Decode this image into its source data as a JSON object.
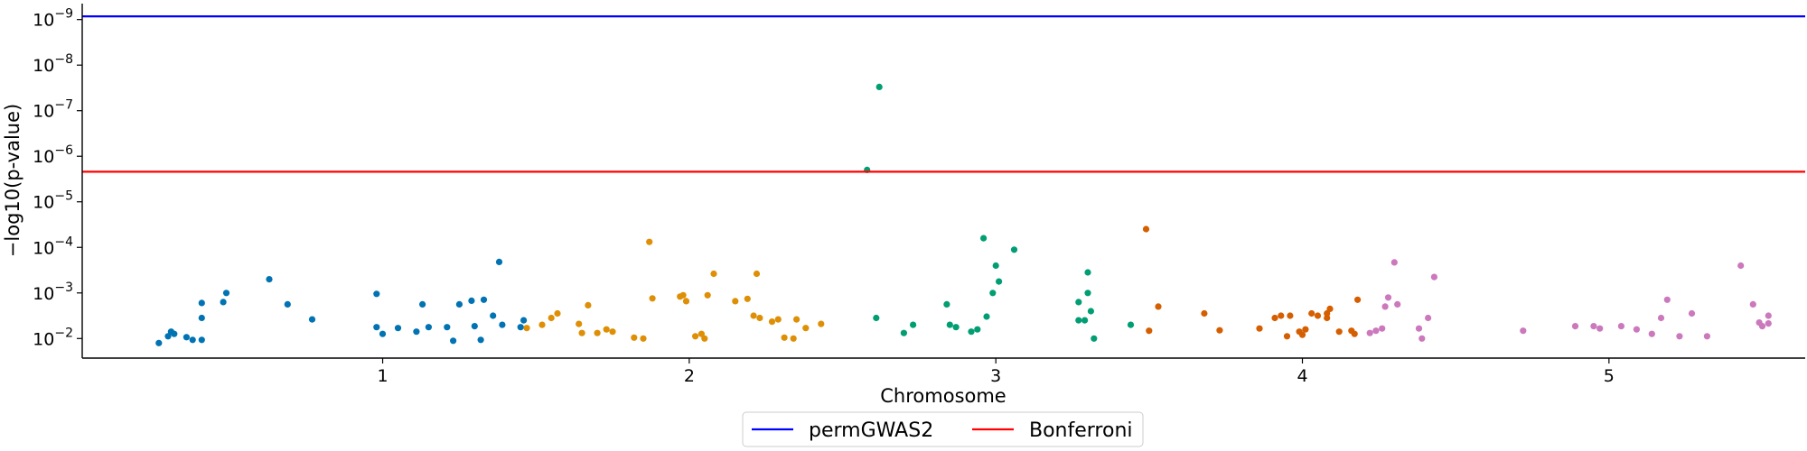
{
  "chart_data": {
    "type": "scatter",
    "title": "",
    "xlabel": "Chromosome",
    "ylabel": "−log10(p-value)",
    "x_ticks": [
      {
        "label": "1",
        "value": 1
      },
      {
        "label": "2",
        "value": 2
      },
      {
        "label": "3",
        "value": 3
      },
      {
        "label": "4",
        "value": 4
      },
      {
        "label": "5",
        "value": 5
      }
    ],
    "y_ticks": [
      {
        "mant": "10",
        "exp": "−9",
        "value": 9
      },
      {
        "mant": "10",
        "exp": "−8",
        "value": 8
      },
      {
        "mant": "10",
        "exp": "−7",
        "value": 7
      },
      {
        "mant": "10",
        "exp": "−6",
        "value": 6
      },
      {
        "mant": "10",
        "exp": "−5",
        "value": 5
      },
      {
        "mant": "10",
        "exp": "−4",
        "value": 4
      },
      {
        "mant": "10",
        "exp": "−3",
        "value": 3
      },
      {
        "mant": "10",
        "exp": "−2",
        "value": 2
      }
    ],
    "ylim": [
      1.57,
      9.35
    ],
    "xlim": [
      0.02,
      5.64
    ],
    "grid": false,
    "legend_position": "bottom-center",
    "thresholds": [
      {
        "name": "permGWAS2",
        "value": 9.07,
        "color": "#0000ff"
      },
      {
        "name": "Bonferroni",
        "value": 5.66,
        "color": "#ff0000"
      }
    ],
    "series": [
      {
        "color": "#0173b2",
        "points": [
          [
            0.27,
            1.9
          ],
          [
            0.3,
            2.05
          ],
          [
            0.31,
            2.15
          ],
          [
            0.32,
            2.1
          ],
          [
            0.36,
            2.03
          ],
          [
            0.38,
            1.97
          ],
          [
            0.41,
            1.97
          ],
          [
            0.41,
            2.45
          ],
          [
            0.41,
            2.78
          ],
          [
            0.48,
            2.8
          ],
          [
            0.49,
            3.0
          ],
          [
            0.63,
            3.3
          ],
          [
            0.69,
            2.75
          ],
          [
            0.77,
            2.42
          ],
          [
            0.98,
            2.25
          ],
          [
            0.98,
            2.98
          ],
          [
            1.0,
            2.1
          ],
          [
            1.05,
            2.23
          ],
          [
            1.11,
            2.15
          ],
          [
            1.13,
            2.75
          ],
          [
            1.15,
            2.25
          ],
          [
            1.21,
            2.25
          ],
          [
            1.23,
            1.95
          ],
          [
            1.25,
            2.75
          ],
          [
            1.29,
            2.83
          ],
          [
            1.3,
            2.27
          ],
          [
            1.32,
            1.97
          ],
          [
            1.33,
            2.85
          ],
          [
            1.36,
            2.5
          ],
          [
            1.38,
            3.68
          ],
          [
            1.39,
            2.3
          ],
          [
            1.45,
            2.25
          ],
          [
            1.46,
            2.4
          ]
        ]
      },
      {
        "color": "#de8f05",
        "points": [
          [
            1.47,
            2.23
          ],
          [
            1.52,
            2.3
          ],
          [
            1.55,
            2.45
          ],
          [
            1.57,
            2.55
          ],
          [
            1.64,
            2.32
          ],
          [
            1.65,
            2.12
          ],
          [
            1.67,
            2.73
          ],
          [
            1.7,
            2.12
          ],
          [
            1.73,
            2.2
          ],
          [
            1.75,
            2.15
          ],
          [
            1.82,
            2.02
          ],
          [
            1.85,
            2.0
          ],
          [
            1.87,
            4.12
          ],
          [
            1.88,
            2.88
          ],
          [
            1.97,
            2.92
          ],
          [
            1.98,
            2.95
          ],
          [
            1.99,
            2.82
          ],
          [
            2.02,
            2.05
          ],
          [
            2.04,
            2.1
          ],
          [
            2.05,
            2.0
          ],
          [
            2.06,
            2.95
          ],
          [
            2.08,
            3.42
          ],
          [
            2.15,
            2.82
          ],
          [
            2.19,
            2.87
          ],
          [
            2.21,
            2.5
          ],
          [
            2.22,
            3.42
          ],
          [
            2.23,
            2.45
          ],
          [
            2.27,
            2.37
          ],
          [
            2.29,
            2.42
          ],
          [
            2.31,
            2.02
          ],
          [
            2.34,
            2.0
          ],
          [
            2.35,
            2.42
          ],
          [
            2.38,
            2.23
          ],
          [
            2.43,
            2.32
          ]
        ]
      },
      {
        "color": "#029e73",
        "points": [
          [
            2.58,
            5.7
          ],
          [
            2.61,
            2.45
          ],
          [
            2.62,
            7.52
          ],
          [
            2.7,
            2.12
          ],
          [
            2.73,
            2.3
          ],
          [
            2.84,
            2.75
          ],
          [
            2.85,
            2.3
          ],
          [
            2.87,
            2.25
          ],
          [
            2.92,
            2.15
          ],
          [
            2.94,
            2.2
          ],
          [
            2.96,
            4.2
          ],
          [
            2.97,
            2.48
          ],
          [
            2.99,
            3.0
          ],
          [
            3.0,
            3.6
          ],
          [
            3.01,
            3.25
          ],
          [
            3.06,
            3.95
          ],
          [
            3.27,
            2.4
          ],
          [
            3.27,
            2.8
          ],
          [
            3.29,
            2.4
          ],
          [
            3.3,
            3.0
          ],
          [
            3.3,
            3.45
          ],
          [
            3.31,
            2.6
          ],
          [
            3.32,
            2.0
          ],
          [
            3.44,
            2.3
          ]
        ]
      },
      {
        "color": "#d55e00",
        "points": [
          [
            3.49,
            4.4
          ],
          [
            3.5,
            2.17
          ],
          [
            3.53,
            2.7
          ],
          [
            3.68,
            2.55
          ],
          [
            3.73,
            2.18
          ],
          [
            3.86,
            2.22
          ],
          [
            3.91,
            2.45
          ],
          [
            3.93,
            2.5
          ],
          [
            3.95,
            2.05
          ],
          [
            3.96,
            2.5
          ],
          [
            3.99,
            2.15
          ],
          [
            4.0,
            2.08
          ],
          [
            4.01,
            2.2
          ],
          [
            4.03,
            2.55
          ],
          [
            4.05,
            2.5
          ],
          [
            4.08,
            2.55
          ],
          [
            4.08,
            2.45
          ],
          [
            4.09,
            2.65
          ],
          [
            4.12,
            2.15
          ],
          [
            4.16,
            2.17
          ],
          [
            4.17,
            2.1
          ],
          [
            4.18,
            2.85
          ]
        ]
      },
      {
        "color": "#cc78bc",
        "points": [
          [
            4.22,
            2.12
          ],
          [
            4.24,
            2.17
          ],
          [
            4.26,
            2.22
          ],
          [
            4.27,
            2.7
          ],
          [
            4.28,
            2.9
          ],
          [
            4.3,
            3.67
          ],
          [
            4.31,
            2.75
          ],
          [
            4.38,
            2.22
          ],
          [
            4.39,
            2.0
          ],
          [
            4.41,
            2.45
          ],
          [
            4.43,
            3.35
          ],
          [
            4.72,
            2.17
          ],
          [
            4.89,
            2.27
          ],
          [
            4.95,
            2.27
          ],
          [
            4.97,
            2.22
          ],
          [
            5.04,
            2.27
          ],
          [
            5.09,
            2.2
          ],
          [
            5.14,
            2.1
          ],
          [
            5.17,
            2.45
          ],
          [
            5.19,
            2.85
          ],
          [
            5.23,
            2.05
          ],
          [
            5.27,
            2.55
          ],
          [
            5.32,
            2.05
          ],
          [
            5.43,
            3.6
          ],
          [
            5.47,
            2.75
          ],
          [
            5.49,
            2.35
          ],
          [
            5.5,
            2.27
          ],
          [
            5.52,
            2.5
          ],
          [
            5.52,
            2.33
          ]
        ]
      }
    ]
  }
}
